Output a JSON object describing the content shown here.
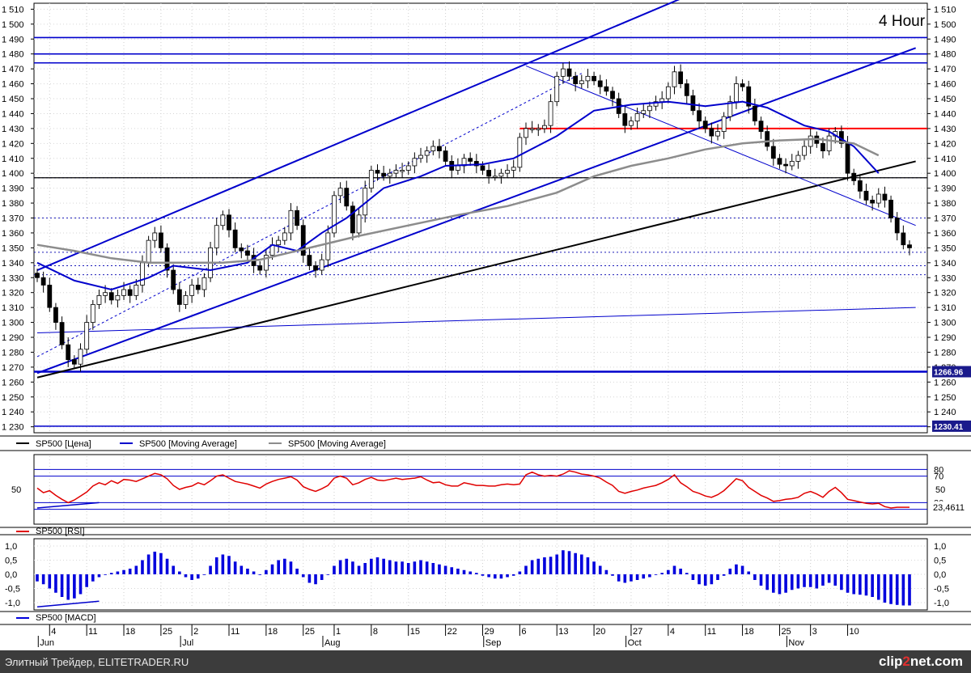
{
  "timeframe_label": "4 Hour",
  "footer": {
    "text": "Элитный Трейдер, ELITETRADER.RU",
    "logo_left": "clip",
    "logo_accent": "2",
    "logo_right": "net.com"
  },
  "colors": {
    "price": "#000000",
    "ma_fast": "#0000cc",
    "ma_slow": "#8c8c8c",
    "rsi": "#e00000",
    "macd": "#0000dd",
    "channel": "#0000cc",
    "resistance_red": "#ff0000",
    "background": "#ffffff"
  },
  "chart_data": [
    {
      "type": "candlestick",
      "name": "price",
      "ylim": [
        1226,
        1514
      ],
      "y_ticks": [
        "1 230",
        "1 240",
        "1 250",
        "1 260",
        "1 270",
        "1 280",
        "1 290",
        "1 300",
        "1 310",
        "1 320",
        "1 330",
        "1 340",
        "1 350",
        "1 360",
        "1 370",
        "1 380",
        "1 390",
        "1 400",
        "1 410",
        "1 420",
        "1 430",
        "1 440",
        "1 450",
        "1 460",
        "1 470",
        "1 480",
        "1 490",
        "1 500",
        "1 510"
      ],
      "price_badges": [
        "1266.96",
        "1230.41"
      ],
      "horizontal_levels": [
        1491,
        1480,
        1474,
        1430,
        1397,
        1370,
        1347,
        1338,
        1332,
        1266.96,
        1230.41
      ],
      "close_path": [
        [
          0,
          1330
        ],
        [
          1,
          1325
        ],
        [
          2,
          1310
        ],
        [
          3,
          1300
        ],
        [
          4,
          1285
        ],
        [
          5,
          1275
        ],
        [
          6,
          1272
        ],
        [
          7,
          1282
        ],
        [
          8,
          1300
        ],
        [
          9,
          1312
        ],
        [
          10,
          1318
        ],
        [
          11,
          1320
        ],
        [
          12,
          1315
        ],
        [
          13,
          1318
        ],
        [
          14,
          1322
        ],
        [
          15,
          1318
        ],
        [
          16,
          1325
        ],
        [
          17,
          1340
        ],
        [
          18,
          1355
        ],
        [
          19,
          1360
        ],
        [
          20,
          1350
        ],
        [
          21,
          1335
        ],
        [
          22,
          1322
        ],
        [
          23,
          1312
        ],
        [
          24,
          1318
        ],
        [
          25,
          1325
        ],
        [
          26,
          1322
        ],
        [
          27,
          1330
        ],
        [
          28,
          1350
        ],
        [
          29,
          1365
        ],
        [
          30,
          1372
        ],
        [
          31,
          1362
        ],
        [
          32,
          1350
        ],
        [
          33,
          1348
        ],
        [
          34,
          1345
        ],
        [
          35,
          1338
        ],
        [
          36,
          1335
        ],
        [
          37,
          1345
        ],
        [
          38,
          1352
        ],
        [
          39,
          1355
        ],
        [
          40,
          1360
        ],
        [
          41,
          1375
        ],
        [
          42,
          1365
        ],
        [
          43,
          1345
        ],
        [
          44,
          1338
        ],
        [
          45,
          1335
        ],
        [
          46,
          1342
        ],
        [
          47,
          1360
        ],
        [
          48,
          1385
        ],
        [
          49,
          1390
        ],
        [
          50,
          1378
        ],
        [
          51,
          1360
        ],
        [
          52,
          1372
        ],
        [
          53,
          1390
        ],
        [
          54,
          1402
        ],
        [
          55,
          1400
        ],
        [
          56,
          1398
        ],
        [
          57,
          1400
        ],
        [
          58,
          1402
        ],
        [
          59,
          1402
        ],
        [
          60,
          1405
        ],
        [
          61,
          1410
        ],
        [
          62,
          1412
        ],
        [
          63,
          1415
        ],
        [
          64,
          1418
        ],
        [
          65,
          1415
        ],
        [
          66,
          1408
        ],
        [
          67,
          1402
        ],
        [
          68,
          1405
        ],
        [
          69,
          1410
        ],
        [
          70,
          1408
        ],
        [
          71,
          1405
        ],
        [
          72,
          1402
        ],
        [
          73,
          1398
        ],
        [
          74,
          1398
        ],
        [
          75,
          1400
        ],
        [
          76,
          1402
        ],
        [
          77,
          1404
        ],
        [
          78,
          1424
        ],
        [
          79,
          1430
        ],
        [
          80,
          1430
        ],
        [
          81,
          1430
        ],
        [
          82,
          1432
        ],
        [
          83,
          1448
        ],
        [
          84,
          1465
        ],
        [
          85,
          1470
        ],
        [
          86,
          1465
        ],
        [
          87,
          1460
        ],
        [
          88,
          1462
        ],
        [
          89,
          1465
        ],
        [
          90,
          1462
        ],
        [
          91,
          1458
        ],
        [
          92,
          1455
        ],
        [
          93,
          1450
        ],
        [
          94,
          1440
        ],
        [
          95,
          1432
        ],
        [
          96,
          1435
        ],
        [
          97,
          1440
        ],
        [
          98,
          1442
        ],
        [
          99,
          1445
        ],
        [
          100,
          1448
        ],
        [
          101,
          1450
        ],
        [
          102,
          1458
        ],
        [
          103,
          1468
        ],
        [
          104,
          1460
        ],
        [
          105,
          1452
        ],
        [
          106,
          1442
        ],
        [
          107,
          1435
        ],
        [
          108,
          1430
        ],
        [
          109,
          1425
        ],
        [
          110,
          1428
        ],
        [
          111,
          1438
        ],
        [
          112,
          1448
        ],
        [
          113,
          1460
        ],
        [
          114,
          1458
        ],
        [
          115,
          1445
        ],
        [
          116,
          1435
        ],
        [
          117,
          1428
        ],
        [
          118,
          1418
        ],
        [
          119,
          1410
        ],
        [
          120,
          1406
        ],
        [
          121,
          1405
        ],
        [
          122,
          1408
        ],
        [
          123,
          1412
        ],
        [
          124,
          1418
        ],
        [
          125,
          1425
        ],
        [
          126,
          1420
        ],
        [
          127,
          1415
        ],
        [
          128,
          1425
        ],
        [
          129,
          1428
        ],
        [
          130,
          1420
        ],
        [
          131,
          1400
        ],
        [
          132,
          1395
        ],
        [
          133,
          1388
        ],
        [
          134,
          1382
        ],
        [
          135,
          1380
        ],
        [
          136,
          1386
        ],
        [
          137,
          1382
        ],
        [
          138,
          1370
        ],
        [
          139,
          1360
        ],
        [
          140,
          1352
        ],
        [
          141,
          1350
        ]
      ],
      "n_bars": 142,
      "indicator_lines": [
        {
          "name": "SP500 [Moving Average] fast",
          "points": [
            [
              0,
              1340
            ],
            [
              6,
              1328
            ],
            [
              12,
              1322
            ],
            [
              18,
              1330
            ],
            [
              22,
              1338
            ],
            [
              28,
              1335
            ],
            [
              34,
              1340
            ],
            [
              38,
              1352
            ],
            [
              42,
              1348
            ],
            [
              46,
              1360
            ],
            [
              50,
              1370
            ],
            [
              56,
              1390
            ],
            [
              62,
              1398
            ],
            [
              66,
              1405
            ],
            [
              72,
              1406
            ],
            [
              77,
              1410
            ],
            [
              84,
              1425
            ],
            [
              90,
              1442
            ],
            [
              96,
              1446
            ],
            [
              102,
              1448
            ],
            [
              108,
              1445
            ],
            [
              114,
              1448
            ],
            [
              118,
              1444
            ],
            [
              124,
              1432
            ],
            [
              128,
              1428
            ],
            [
              132,
              1418
            ],
            [
              136,
              1400
            ]
          ]
        },
        {
          "name": "SP500 [Moving Average] slow",
          "points": [
            [
              0,
              1352
            ],
            [
              6,
              1348
            ],
            [
              12,
              1343
            ],
            [
              18,
              1340
            ],
            [
              24,
              1340
            ],
            [
              30,
              1340
            ],
            [
              36,
              1342
            ],
            [
              44,
              1350
            ],
            [
              52,
              1358
            ],
            [
              60,
              1365
            ],
            [
              68,
              1372
            ],
            [
              76,
              1378
            ],
            [
              84,
              1387
            ],
            [
              90,
              1398
            ],
            [
              96,
              1405
            ],
            [
              102,
              1410
            ],
            [
              108,
              1416
            ],
            [
              114,
              1420
            ],
            [
              120,
              1422
            ],
            [
              126,
              1423
            ],
            [
              132,
              1420
            ],
            [
              136,
              1412
            ]
          ]
        }
      ],
      "trend_lines": [
        {
          "color": "blue",
          "from": [
            0,
            1335
          ],
          "to": [
            104,
            1517
          ]
        },
        {
          "color": "blue",
          "from": [
            0,
            1266
          ],
          "to": [
            142,
            1484
          ]
        },
        {
          "color": "black",
          "from": [
            0,
            1263
          ],
          "to": [
            142,
            1408
          ]
        },
        {
          "color": "blue-thin",
          "from": [
            0,
            1293
          ],
          "to": [
            142,
            1310
          ]
        },
        {
          "color": "blue-thin",
          "from": [
            79,
            1472
          ],
          "to": [
            142,
            1365
          ]
        },
        {
          "color": "blue-dashed",
          "from": [
            0,
            1277
          ],
          "to": [
            88,
            1467
          ]
        }
      ],
      "legend": [
        "SP500 [Цена]",
        "SP500 [Moving Average]",
        "SP500 [Moving Average]"
      ]
    },
    {
      "type": "line",
      "name": "SP500 [RSI]",
      "ylim": [
        0,
        100
      ],
      "y_ticks": [
        "50"
      ],
      "levels": [
        "80",
        "70",
        "30",
        "20"
      ],
      "last_value": "23,4611",
      "values": [
        52,
        45,
        48,
        41,
        35,
        30,
        34,
        40,
        46,
        55,
        60,
        57,
        63,
        59,
        65,
        64,
        62,
        66,
        70,
        74,
        72,
        66,
        56,
        50,
        53,
        55,
        60,
        57,
        63,
        70,
        72,
        67,
        62,
        60,
        58,
        55,
        52,
        58,
        62,
        65,
        67,
        69,
        64,
        54,
        50,
        47,
        51,
        56,
        67,
        70,
        67,
        57,
        60,
        65,
        68,
        64,
        63,
        65,
        67,
        65,
        66,
        67,
        69,
        64,
        60,
        61,
        57,
        55,
        55,
        60,
        58,
        56,
        56,
        55,
        55,
        57,
        58,
        57,
        58,
        72,
        76,
        72,
        70,
        71,
        70,
        73,
        78,
        76,
        73,
        72,
        70,
        67,
        61,
        56,
        47,
        44,
        47,
        49,
        52,
        54,
        56,
        60,
        65,
        72,
        60,
        54,
        47,
        44,
        40,
        38,
        42,
        48,
        57,
        66,
        63,
        53,
        47,
        41,
        37,
        32,
        33,
        35,
        36,
        38,
        44,
        47,
        43,
        38,
        47,
        53,
        45,
        35,
        33,
        31,
        29,
        28,
        29,
        24,
        22,
        23,
        23,
        23
      ]
    },
    {
      "type": "bar",
      "name": "SP500 [MACD]",
      "ylim": [
        -1.2,
        1.2
      ],
      "y_ticks": [
        "1,0",
        "0,5",
        "0,0",
        "-0,5",
        "-1,0"
      ],
      "values": [
        -0.25,
        -0.35,
        -0.5,
        -0.65,
        -0.8,
        -0.9,
        -0.85,
        -0.7,
        -0.45,
        -0.25,
        -0.1,
        0.0,
        0.05,
        0.1,
        0.15,
        0.2,
        0.3,
        0.5,
        0.7,
        0.8,
        0.75,
        0.55,
        0.3,
        0.1,
        -0.1,
        -0.2,
        -0.15,
        0.0,
        0.3,
        0.6,
        0.7,
        0.65,
        0.45,
        0.3,
        0.2,
        0.1,
        0.0,
        0.15,
        0.35,
        0.5,
        0.55,
        0.45,
        0.2,
        -0.1,
        -0.3,
        -0.35,
        -0.2,
        0.0,
        0.3,
        0.5,
        0.55,
        0.45,
        0.3,
        0.4,
        0.55,
        0.6,
        0.55,
        0.5,
        0.45,
        0.45,
        0.4,
        0.45,
        0.5,
        0.45,
        0.4,
        0.35,
        0.3,
        0.25,
        0.2,
        0.15,
        0.1,
        0.05,
        -0.05,
        -0.1,
        -0.15,
        -0.15,
        -0.1,
        -0.05,
        0.1,
        0.3,
        0.5,
        0.55,
        0.6,
        0.62,
        0.7,
        0.85,
        0.82,
        0.75,
        0.7,
        0.6,
        0.45,
        0.3,
        0.15,
        -0.05,
        -0.25,
        -0.3,
        -0.25,
        -0.2,
        -0.15,
        -0.1,
        0.0,
        0.05,
        0.15,
        0.3,
        0.2,
        0.05,
        -0.2,
        -0.35,
        -0.4,
        -0.35,
        -0.2,
        -0.05,
        0.2,
        0.35,
        0.3,
        0.1,
        -0.2,
        -0.4,
        -0.55,
        -0.65,
        -0.7,
        -0.65,
        -0.55,
        -0.5,
        -0.45,
        -0.45,
        -0.5,
        -0.4,
        -0.3,
        -0.4,
        -0.55,
        -0.65,
        -0.7,
        -0.72,
        -0.75,
        -0.8,
        -0.9,
        -1.0,
        -1.05,
        -1.08,
        -1.1,
        -1.1
      ]
    }
  ],
  "x_axis": {
    "day_ticks": [
      {
        "label": "4",
        "bar": 2
      },
      {
        "label": "11",
        "bar": 8
      },
      {
        "label": "18",
        "bar": 14
      },
      {
        "label": "25",
        "bar": 20
      },
      {
        "label": "2",
        "bar": 25
      },
      {
        "label": "11",
        "bar": 31
      },
      {
        "label": "18",
        "bar": 37
      },
      {
        "label": "25",
        "bar": 43
      },
      {
        "label": "1",
        "bar": 48
      },
      {
        "label": "8",
        "bar": 54
      },
      {
        "label": "15",
        "bar": 60
      },
      {
        "label": "22",
        "bar": 66
      },
      {
        "label": "29",
        "bar": 72
      },
      {
        "label": "6",
        "bar": 78
      },
      {
        "label": "13",
        "bar": 84
      },
      {
        "label": "20",
        "bar": 90
      },
      {
        "label": "27",
        "bar": 96
      },
      {
        "label": "4",
        "bar": 102
      },
      {
        "label": "11",
        "bar": 108
      },
      {
        "label": "18",
        "bar": 114
      },
      {
        "label": "25",
        "bar": 120
      },
      {
        "label": "3",
        "bar": 125
      },
      {
        "label": "10",
        "bar": 131
      }
    ],
    "months": [
      {
        "label": "Jun",
        "bar": 2
      },
      {
        "label": "Jul",
        "bar": 25
      },
      {
        "label": "Aug",
        "bar": 48
      },
      {
        "label": "Sep",
        "bar": 74
      },
      {
        "label": "Oct",
        "bar": 97
      },
      {
        "label": "Nov",
        "bar": 123
      }
    ]
  }
}
